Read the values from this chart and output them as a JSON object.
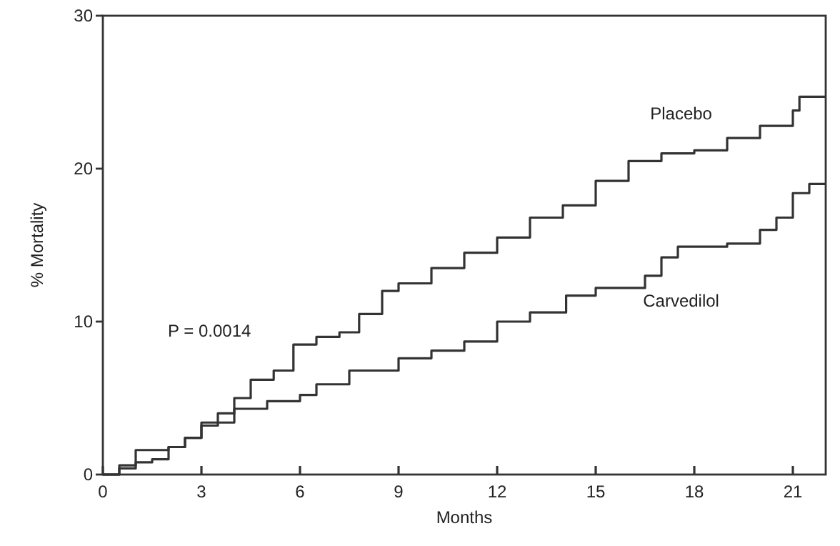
{
  "chart_data": {
    "type": "step",
    "xlabel": "Months",
    "ylabel": "% Mortality",
    "xlim": [
      0,
      22
    ],
    "ylim": [
      0,
      30
    ],
    "xticks": [
      0,
      3,
      6,
      9,
      12,
      15,
      18,
      21
    ],
    "yticks": [
      0,
      10,
      20,
      30
    ],
    "grid": false,
    "annotations": [
      "P = 0.0014"
    ],
    "series": [
      {
        "name": "Placebo",
        "color": "#333333",
        "x": [
          0,
          0.5,
          1,
          1.5,
          2,
          2.5,
          3,
          3.5,
          4,
          4.5,
          5.2,
          5.8,
          6.5,
          7.2,
          7.8,
          8.5,
          9,
          10,
          11,
          12,
          13,
          14,
          15,
          16,
          17,
          18,
          19,
          20,
          21,
          21.2,
          22
        ],
        "values": [
          0,
          0.4,
          0.8,
          1,
          1.8,
          2.4,
          3.2,
          4,
          5,
          6.2,
          6.8,
          8.5,
          9,
          9.3,
          10.5,
          12,
          12.5,
          13.5,
          14.5,
          15.5,
          16.8,
          17.6,
          19.2,
          20.5,
          21,
          21.2,
          22,
          22.8,
          23.8,
          24.7,
          24.7
        ]
      },
      {
        "name": "Carvedilol",
        "color": "#333333",
        "x": [
          0,
          0.5,
          1,
          2,
          2.5,
          3,
          4,
          5,
          6,
          6.5,
          7.5,
          9,
          10,
          11,
          12,
          13,
          14.1,
          15,
          16.5,
          17,
          17.5,
          19,
          20,
          20.5,
          21,
          21.5,
          22
        ],
        "values": [
          0,
          0.6,
          1.6,
          1.8,
          2.4,
          3.4,
          4.3,
          4.8,
          5.2,
          5.9,
          6.8,
          7.6,
          8.1,
          8.7,
          10,
          10.6,
          11.7,
          12.2,
          13,
          14.2,
          14.9,
          15.1,
          16,
          16.8,
          18.4,
          19,
          19
        ]
      }
    ]
  }
}
